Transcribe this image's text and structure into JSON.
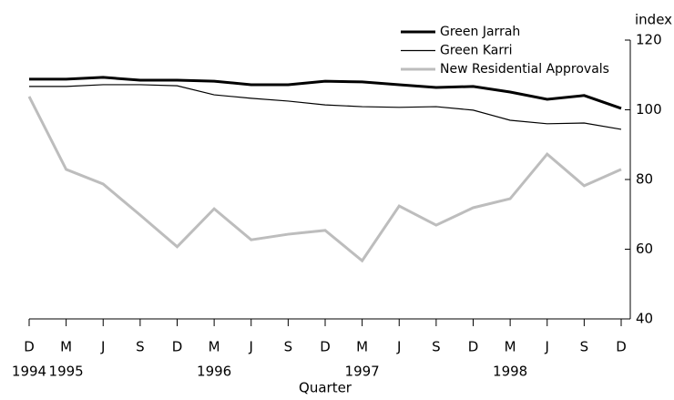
{
  "chart_data": {
    "type": "line",
    "y_label": "index",
    "x_label": "Quarter",
    "categories": [
      "D",
      "M",
      "J",
      "S",
      "D",
      "M",
      "J",
      "S",
      "D",
      "M",
      "J",
      "S",
      "D",
      "M",
      "J",
      "S",
      "D"
    ],
    "years": [
      "1994",
      "1995",
      null,
      null,
      null,
      "1996",
      null,
      null,
      null,
      "1997",
      null,
      null,
      null,
      "1998",
      null,
      null,
      null
    ],
    "series": [
      {
        "name": "Green Jarrah",
        "color": "#000000",
        "width": 3,
        "values": [
          108.8,
          108.8,
          109.3,
          108.5,
          108.5,
          108.2,
          107.2,
          107.2,
          108.2,
          108.0,
          107.2,
          106.4,
          106.7,
          105.1,
          103.0,
          104.1,
          100.4
        ]
      },
      {
        "name": "Green Karri",
        "color": "#000000",
        "width": 1.2,
        "values": [
          106.7,
          106.7,
          107.2,
          107.2,
          106.9,
          104.3,
          103.3,
          102.5,
          101.4,
          100.9,
          100.7,
          100.9,
          99.9,
          97.0,
          96.0,
          96.2,
          94.4
        ]
      },
      {
        "name": "New Residential Approvals",
        "color": "#bdbdbd",
        "width": 3,
        "values": [
          103.8,
          82.9,
          78.7,
          69.8,
          60.7,
          71.6,
          62.7,
          64.3,
          65.4,
          56.7,
          72.4,
          66.9,
          71.9,
          74.5,
          87.3,
          78.2,
          82.9
        ]
      }
    ],
    "ylim": [
      40,
      120
    ],
    "yticks": [
      40,
      60,
      80,
      100,
      120
    ],
    "y_axis_side": "right",
    "grid": false
  }
}
